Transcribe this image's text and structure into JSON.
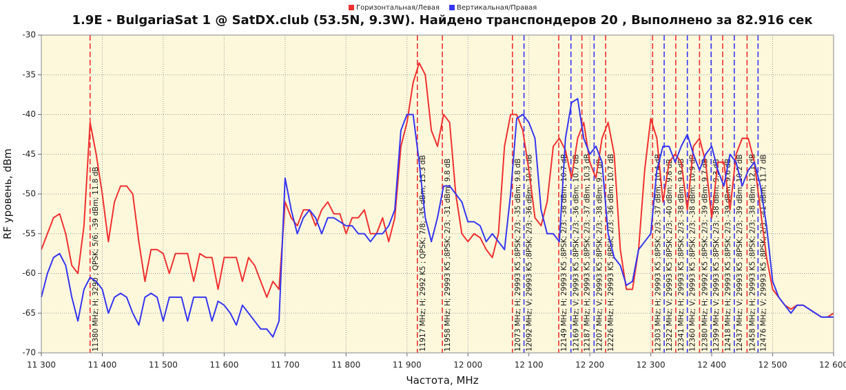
{
  "chart_data": {
    "type": "line",
    "title": "1.9E - BulgariaSat 1 @ SatDX.club (53.5N, 9.3W). Найдено транспондеров 20 , Выполнено за 82.916 сек",
    "xlabel": "Частота, MHz",
    "ylabel": "RF уровень, dBm",
    "xlim": [
      11300,
      12600
    ],
    "ylim": [
      -70,
      -30
    ],
    "xticks": [
      {
        "value": 11300,
        "label": "11 300"
      },
      {
        "value": 11400,
        "label": "11 400"
      },
      {
        "value": 11500,
        "label": "11 500"
      },
      {
        "value": 11600,
        "label": "11 600"
      },
      {
        "value": 11700,
        "label": "11 700"
      },
      {
        "value": 11800,
        "label": "11 800"
      },
      {
        "value": 11900,
        "label": "11 900"
      },
      {
        "value": 12000,
        "label": "12 000"
      },
      {
        "value": 12100,
        "label": "12 100"
      },
      {
        "value": 12200,
        "label": "12 200"
      },
      {
        "value": 12300,
        "label": "12 300"
      },
      {
        "value": 12400,
        "label": "12 400"
      },
      {
        "value": 12500,
        "label": "12 500"
      },
      {
        "value": 12600,
        "label": "12 600"
      }
    ],
    "yticks": [
      -30,
      -35,
      -40,
      -45,
      -50,
      -55,
      -60,
      -65,
      -70
    ],
    "grid": true,
    "legend": "top",
    "x": [
      11300,
      11310,
      11320,
      11330,
      11340,
      11350,
      11360,
      11370,
      11380,
      11390,
      11400,
      11410,
      11420,
      11430,
      11440,
      11450,
      11460,
      11470,
      11480,
      11490,
      11500,
      11510,
      11520,
      11530,
      11540,
      11550,
      11560,
      11570,
      11580,
      11590,
      11600,
      11610,
      11620,
      11630,
      11640,
      11650,
      11660,
      11670,
      11680,
      11690,
      11700,
      11710,
      11720,
      11730,
      11740,
      11750,
      11760,
      11770,
      11780,
      11790,
      11800,
      11810,
      11820,
      11830,
      11840,
      11850,
      11860,
      11870,
      11880,
      11890,
      11900,
      11910,
      11920,
      11930,
      11940,
      11950,
      11960,
      11970,
      11980,
      11990,
      12000,
      12010,
      12020,
      12030,
      12040,
      12050,
      12060,
      12070,
      12080,
      12090,
      12100,
      12110,
      12120,
      12130,
      12140,
      12150,
      12160,
      12170,
      12180,
      12190,
      12200,
      12210,
      12220,
      12230,
      12240,
      12250,
      12260,
      12270,
      12280,
      12290,
      12300,
      12310,
      12320,
      12330,
      12340,
      12350,
      12360,
      12370,
      12380,
      12390,
      12400,
      12410,
      12420,
      12430,
      12440,
      12450,
      12460,
      12470,
      12480,
      12490,
      12500,
      12510,
      12520,
      12530,
      12540,
      12550,
      12560,
      12570,
      12580,
      12590,
      12600
    ],
    "series": [
      {
        "name": "Горизонтальная/Левая",
        "color": "#f03030",
        "values": [
          -57,
          -55,
          -53,
          -52.5,
          -55,
          -59,
          -60,
          -54,
          -41,
          -45,
          -50,
          -56,
          -51,
          -49,
          -49,
          -50,
          -56,
          -61,
          -57,
          -57,
          -57.5,
          -60,
          -57.5,
          -57.5,
          -57.5,
          -61,
          -57.5,
          -58,
          -58,
          -62,
          -58,
          -58,
          -58,
          -61,
          -58,
          -59,
          -61,
          -63,
          -61,
          -62,
          -51,
          -53,
          -54,
          -52,
          -52,
          -54,
          -52,
          -51,
          -52.5,
          -52.5,
          -55,
          -53,
          -53,
          -52,
          -55,
          -55,
          -53,
          -56,
          -53,
          -44,
          -41,
          -36,
          -33.5,
          -35,
          -42,
          -44,
          -40,
          -41,
          -50,
          -55,
          -56,
          -55,
          -55.5,
          -57,
          -58,
          -55,
          -44,
          -40,
          -40,
          -42,
          -47,
          -53,
          -54,
          -51,
          -44,
          -43,
          -44.5,
          -48,
          -43,
          -41,
          -46,
          -48,
          -43,
          -41,
          -45,
          -57,
          -62,
          -62,
          -57,
          -47,
          -40.5,
          -43,
          -51,
          -46,
          -45,
          -46,
          -52,
          -44,
          -43,
          -46,
          -53,
          -46,
          -46,
          -52,
          -45,
          -43,
          -43,
          -46,
          -52,
          -58,
          -62,
          -63,
          -64,
          -64.5,
          -64,
          -64,
          -64.5,
          -65,
          -65.5,
          -65.5,
          -65
        ]
      },
      {
        "name": "Вертикальная/Правая",
        "color": "#3535f0",
        "values": [
          -63,
          -60,
          -58,
          -57.5,
          -59,
          -63,
          -66,
          -62,
          -60.5,
          -61,
          -62,
          -65,
          -63,
          -62.5,
          -63,
          -65,
          -66.5,
          -63,
          -62.5,
          -63,
          -66,
          -63,
          -63,
          -63,
          -66,
          -63,
          -63,
          -63,
          -66,
          -63.5,
          -64,
          -65,
          -66.5,
          -64,
          -65,
          -66,
          -67,
          -67,
          -68,
          -66,
          -48,
          -52,
          -55,
          -53,
          -52,
          -53,
          -55,
          -53,
          -53,
          -53.5,
          -54,
          -54,
          -55,
          -55,
          -56,
          -55,
          -55,
          -54,
          -52,
          -42,
          -40,
          -40,
          -46,
          -53,
          -56,
          -53,
          -49,
          -49,
          -50,
          -51,
          -53.5,
          -53.5,
          -54,
          -56,
          -55,
          -56,
          -57,
          -50,
          -40.5,
          -40,
          -41,
          -43,
          -52,
          -55,
          -55,
          -56,
          -43,
          -38.5,
          -38,
          -43,
          -45,
          -44,
          -46,
          -55,
          -58,
          -59,
          -61.5,
          -61,
          -57,
          -56,
          -55,
          -47,
          -44,
          -44,
          -46,
          -44,
          -42.5,
          -45,
          -47,
          -45,
          -44,
          -47,
          -49,
          -45,
          -46,
          -49,
          -47,
          -46,
          -49,
          -54,
          -61,
          -63,
          -64,
          -65,
          -64,
          -64,
          -64.5,
          -65,
          -65.5,
          -65.5,
          -65.5
        ]
      }
    ],
    "transponders": [
      {
        "x": 11380,
        "color": "#f03030",
        "label": "11380 MHz; H; 3290 ; QPSK; 5/6; -39 dBm; 11.8 dB"
      },
      {
        "x": 11917,
        "color": "#f03030",
        "label": "11917 MHz; H; 2992 K5 ; QPSK; 7/8; -35 dBm; 15.3 dB"
      },
      {
        "x": 11958,
        "color": "#f03030",
        "label": "11958 MHz; H; 29993 K5 ;8PSK; 2/3; -31 dBm; 9.8 dB"
      },
      {
        "x": 12073,
        "color": "#f03030",
        "label": "12073 MHz; H; 29993 K5 ;8PSK; 2/3; -35 dBm; 9.8 dB"
      },
      {
        "x": 12092,
        "color": "#3535f0",
        "label": "12092 MHz; V; 29993 K5 ;8PSK; 2/3; -36 dBm; 10.5 dB"
      },
      {
        "x": 12149,
        "color": "#f03030",
        "label": "12149 MHz; H; 29993 K5 ;8PSK; 2/3; -38 dBm; 10.7 dB"
      },
      {
        "x": 12169,
        "color": "#3535f0",
        "label": "12169 MHz; V; 29993 K5 ;8PSK; 2/3; -36 dBm; 10.7 dB"
      },
      {
        "x": 12187,
        "color": "#f03030",
        "label": "12187 MHz; H; 29993 K5 ;8PSK; 2/3; -37 dBm; 10.3 dB"
      },
      {
        "x": 12207,
        "color": "#3535f0",
        "label": "12207 MHz; V; 29993 K5 ;8PSK; 2/3; -38 dBm; 9.7 dB"
      },
      {
        "x": 12226,
        "color": "#f03030",
        "label": "12226 MHz; H; 29993 K5 ;8PSK; 2/3; -36 dBm; 10.7 dB"
      },
      {
        "x": 12303,
        "color": "#f03030",
        "label": "12303 MHz; H; 29993 K5 ;8PSK; 2/3; -37 dBm; 10.4 dB"
      },
      {
        "x": 12322,
        "color": "#3535f0",
        "label": "12322 MHz; V; 29993 K5 ;8PSK; 2/3; -40 dBm; 9.8 dB"
      },
      {
        "x": 12341,
        "color": "#f03030",
        "label": "12341 MHz; H; 29993 K5 ;8PSK; 2/3; -38 dBm; 9.9 dB"
      },
      {
        "x": 12360,
        "color": "#3535f0",
        "label": "12360 MHz; V; 29993 K5 ;8PSK; 2/3; -38 dBm; 10.9 dB"
      },
      {
        "x": 12380,
        "color": "#f03030",
        "label": "12380 MHz; H; 29992 K5 ;8PSK; 2/3; -39 dBm; 9.7 dB"
      },
      {
        "x": 12399,
        "color": "#3535f0",
        "label": "12399 MHz; V; 29993 K5 ;8PSK; 2/3; -38 dBm; 9.3 dB"
      },
      {
        "x": 12418,
        "color": "#f03030",
        "label": "12418 MHz; H; 29993 K5 ;8PSK; 2/3; -39 dBm; 9.6 dB"
      },
      {
        "x": 12437,
        "color": "#3535f0",
        "label": "12437 MHz; V; 29993 K5 ;8PSK; 2/3; -39 dBm; 10.2 dB"
      },
      {
        "x": 12458,
        "color": "#f03030",
        "label": "12458 MHz; H; 29993 K5 ;8PSK; 2/3; -38 dBm; 12.1 dB"
      },
      {
        "x": 12476,
        "color": "#3535f0",
        "label": "12476 MHz; V; 29993 K5 ;8PSK; 2/3; -41 dBm; 11.7 dB"
      }
    ]
  }
}
